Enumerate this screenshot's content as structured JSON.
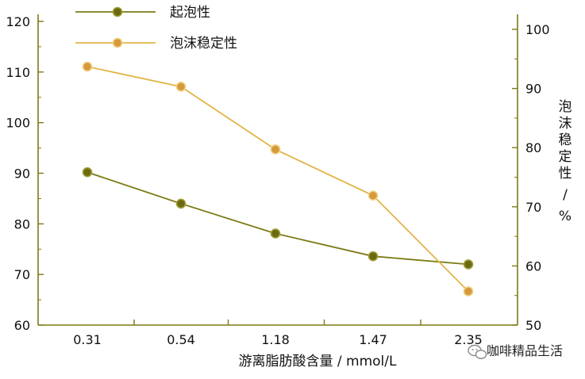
{
  "chart_data": {
    "type": "line",
    "categories": [
      "0.31",
      "0.54",
      "1.18",
      "1.47",
      "2.35"
    ],
    "xlabel": "游离脂肪酸含量 / mmol/L",
    "left_axis": {
      "ylim": [
        60,
        120
      ],
      "ticks": [
        "60",
        "70",
        "80",
        "90",
        "100",
        "110",
        "120"
      ]
    },
    "right_axis": {
      "label": "泡沫稳定性 / %",
      "ylim": [
        50,
        100
      ],
      "ticks": [
        "50",
        "60",
        "70",
        "80",
        "90",
        "100"
      ]
    },
    "series": [
      {
        "name": "起泡性",
        "axis": "left",
        "values": [
          90.2,
          84.0,
          78.1,
          73.6,
          72.0
        ],
        "line_color": "#7d7a16",
        "marker_fill": "#6b6a10",
        "marker_stroke": "#a39f3a"
      },
      {
        "name": "泡沫稳定性",
        "axis": "right",
        "values": [
          93.7,
          90.3,
          79.7,
          71.9,
          55.7
        ],
        "line_color": "#e2b447",
        "marker_fill": "#d49a3c",
        "marker_stroke": "#f2cf7e"
      }
    ],
    "legend_position": "top-left",
    "grid": false,
    "axis_color": "#7d7a16"
  },
  "watermark": {
    "icon": "wechat-icon",
    "text": "咖啡精品生活"
  }
}
